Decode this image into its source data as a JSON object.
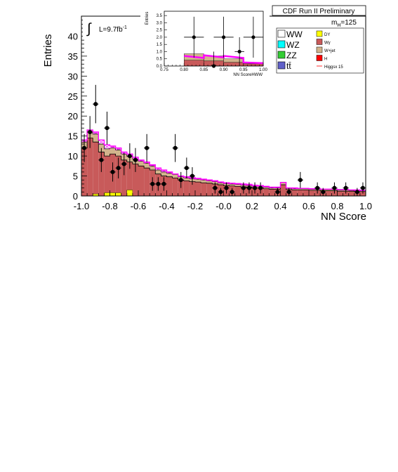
{
  "chart_data": {
    "type": "bar",
    "header": "CDF Run II Preliminary",
    "xlabel": "NN Score",
    "ylabel": "Entries",
    "xlim": [
      -1.0,
      1.0
    ],
    "ylim": [
      0,
      45
    ],
    "xticks": [
      "-1.0",
      "-0.8",
      "-0.6",
      "-0.4",
      "-0.2",
      "-0.0",
      "0.2",
      "0.4",
      "0.6",
      "0.8",
      "1.0"
    ],
    "yticks": [
      "0",
      "5",
      "10",
      "15",
      "20",
      "25",
      "30",
      "35",
      "40"
    ],
    "lumi_label": "L=9.7fb",
    "lumi_exponent": "-1",
    "mass_label": "m",
    "mass_sub": "H",
    "mass_value": "=125",
    "legend": [
      {
        "label": "WW",
        "color": "#ffffff",
        "size": "big"
      },
      {
        "label": "WZ",
        "color": "#00ffff",
        "size": "big"
      },
      {
        "label": "ZZ",
        "color": "#33cc33",
        "size": "big"
      },
      {
        "label": "tt̄",
        "color": "#6060c8",
        "size": "big"
      },
      {
        "label": "DY",
        "color": "#ffff00",
        "size": "small"
      },
      {
        "label": "Wγ",
        "color": "#c85a5a",
        "size": "small"
      },
      {
        "label": "W+jet",
        "color": "#d2b48c",
        "size": "small"
      },
      {
        "label": "H",
        "color": "#ff0000",
        "size": "small"
      },
      {
        "label": "Higgsx 15",
        "color": "#ff3030",
        "size": "small",
        "line": true
      }
    ],
    "colors": {
      "wgamma": "#c85a5a",
      "wjet": "#d2b48c",
      "dy": "#ffff00",
      "higgs": "#ff00ff",
      "data": "#000000"
    },
    "bins": {
      "xmin": -1.0,
      "width": 0.04
    },
    "stack": {
      "wgamma": [
        12,
        14.5,
        13.5,
        11,
        10,
        10.5,
        10,
        9,
        8.5,
        8,
        7.5,
        7,
        6.5,
        5.5,
        5,
        4.8,
        4.5,
        4,
        3.8,
        3.6,
        3.5,
        3.3,
        3.2,
        3,
        2.8,
        2.6,
        2.5,
        2.4,
        2.3,
        2.2,
        2,
        2,
        1.8,
        1.7,
        1.7,
        2.8,
        1.6,
        1.5,
        1.5,
        1.5,
        1.4,
        1.4,
        1.3,
        1.3,
        1.3,
        1.2,
        1.2,
        1.2,
        1.1,
        1.1
      ],
      "wjet": [
        1.5,
        2,
        2,
        2,
        1.8,
        1.5,
        1.5,
        1.5,
        1.4,
        1.3,
        1.2,
        1.2,
        1,
        1,
        1,
        0.9,
        0.9,
        0.8,
        0.7,
        0.7,
        0.7,
        0.7,
        0.6,
        0.6,
        0.5,
        0.5,
        0.5,
        0.5,
        0.4,
        0.4,
        0.4,
        0.4,
        0.4,
        0.3,
        0.3,
        0.6,
        0.3,
        0.3,
        0.3,
        0.3,
        0.3,
        0.3,
        0.3,
        0.3,
        0.3,
        0.3,
        0.3,
        0.2,
        0.2,
        0.2
      ],
      "dy": [
        0,
        0,
        0.5,
        0,
        0.8,
        0.8,
        0.8,
        0,
        1.5,
        0,
        0,
        0,
        0,
        0,
        0,
        0,
        0,
        0,
        0,
        0,
        0,
        0,
        0,
        0,
        0,
        0,
        0,
        0,
        0,
        0,
        0,
        0,
        0,
        0,
        0,
        0,
        0,
        0,
        0,
        0,
        0,
        0,
        0,
        0,
        0,
        0,
        0,
        0,
        0,
        0
      ],
      "higgs_x15": [
        14,
        16.5,
        16,
        14,
        12.8,
        12.5,
        12,
        11,
        10.5,
        9.7,
        9,
        8.5,
        7.8,
        7,
        6.5,
        6,
        5.5,
        5,
        4.8,
        4.6,
        4.4,
        4.2,
        4,
        3.8,
        3.5,
        3.3,
        3.2,
        3.1,
        3,
        2.9,
        2.7,
        2.6,
        2.4,
        2.2,
        2.2,
        3.4,
        2,
        2,
        1.9,
        1.9,
        1.8,
        1.8,
        1.7,
        1.7,
        1.7,
        1.6,
        1.6,
        1.5,
        1.5,
        1.4
      ]
    },
    "data_points": [
      {
        "x": -0.98,
        "y": 12,
        "err": 3.5
      },
      {
        "x": -0.94,
        "y": 16,
        "err": 4
      },
      {
        "x": -0.9,
        "y": 23,
        "err": 4.8
      },
      {
        "x": -0.86,
        "y": 9,
        "err": 3
      },
      {
        "x": -0.82,
        "y": 17,
        "err": 4.1
      },
      {
        "x": -0.78,
        "y": 6,
        "err": 2.4
      },
      {
        "x": -0.74,
        "y": 7,
        "err": 2.6
      },
      {
        "x": -0.7,
        "y": 8,
        "err": 2.8
      },
      {
        "x": -0.66,
        "y": 10,
        "err": 3.2
      },
      {
        "x": -0.62,
        "y": 9,
        "err": 3
      },
      {
        "x": -0.54,
        "y": 12,
        "err": 3.5
      },
      {
        "x": -0.5,
        "y": 3,
        "err": 1.7
      },
      {
        "x": -0.46,
        "y": 3,
        "err": 1.7
      },
      {
        "x": -0.42,
        "y": 3,
        "err": 1.7
      },
      {
        "x": -0.34,
        "y": 12,
        "err": 3.5
      },
      {
        "x": -0.3,
        "y": 4,
        "err": 2
      },
      {
        "x": -0.26,
        "y": 7,
        "err": 2.6
      },
      {
        "x": -0.22,
        "y": 5,
        "err": 2.2
      },
      {
        "x": -0.06,
        "y": 2,
        "err": 1.4
      },
      {
        "x": -0.02,
        "y": 1,
        "err": 1
      },
      {
        "x": 0.02,
        "y": 2,
        "err": 1.4
      },
      {
        "x": 0.06,
        "y": 1,
        "err": 1
      },
      {
        "x": 0.14,
        "y": 2,
        "err": 1.4
      },
      {
        "x": 0.18,
        "y": 2,
        "err": 1.4
      },
      {
        "x": 0.22,
        "y": 2,
        "err": 1.4
      },
      {
        "x": 0.26,
        "y": 2,
        "err": 1.4
      },
      {
        "x": 0.38,
        "y": 1,
        "err": 1
      },
      {
        "x": 0.46,
        "y": 1,
        "err": 1
      },
      {
        "x": 0.54,
        "y": 4,
        "err": 2
      },
      {
        "x": 0.66,
        "y": 2,
        "err": 1.4
      },
      {
        "x": 0.7,
        "y": 1,
        "err": 1
      },
      {
        "x": 0.78,
        "y": 2,
        "err": 1.4
      },
      {
        "x": 0.86,
        "y": 2,
        "err": 1.4
      },
      {
        "x": 0.94,
        "y": 1,
        "err": 1
      },
      {
        "x": 0.98,
        "y": 2,
        "err": 1.4
      }
    ],
    "inset": {
      "xlabel": "NN ScoreHWW",
      "ylabel": "Entries",
      "xlim": [
        0.75,
        1.0
      ],
      "ylim": [
        0,
        3.8
      ],
      "xticks": [
        "0.75",
        "0.80",
        "0.85",
        "0.90",
        "0.95",
        "1.00"
      ],
      "yticks": [
        "0.0",
        "0.5",
        "1.0",
        "1.5",
        "2.0",
        "2.5",
        "3.0",
        "3.5"
      ],
      "bins": {
        "xmin": 0.75,
        "width": 0.05
      },
      "wgamma": [
        0,
        0.4,
        0.35,
        0.25,
        0.15
      ],
      "wjet": [
        0,
        0.45,
        0.35,
        0.25,
        0.1
      ],
      "higgs_x15": [
        0.62,
        0.7,
        0.75,
        0.7,
        0.25
      ],
      "data_points": [
        {
          "x": 0.825,
          "y": 2,
          "err": 1.42,
          "xerr": 0.025
        },
        {
          "x": 0.875,
          "y": 0,
          "err": 1.0,
          "xerr": 0.025
        },
        {
          "x": 0.9,
          "y": 2,
          "err": 1.42,
          "xerr": 0.025
        },
        {
          "x": 0.94,
          "y": 1,
          "err": 1.0,
          "xerr": 0.012
        },
        {
          "x": 0.975,
          "y": 2,
          "err": 1.42,
          "xerr": 0.025
        }
      ]
    }
  }
}
